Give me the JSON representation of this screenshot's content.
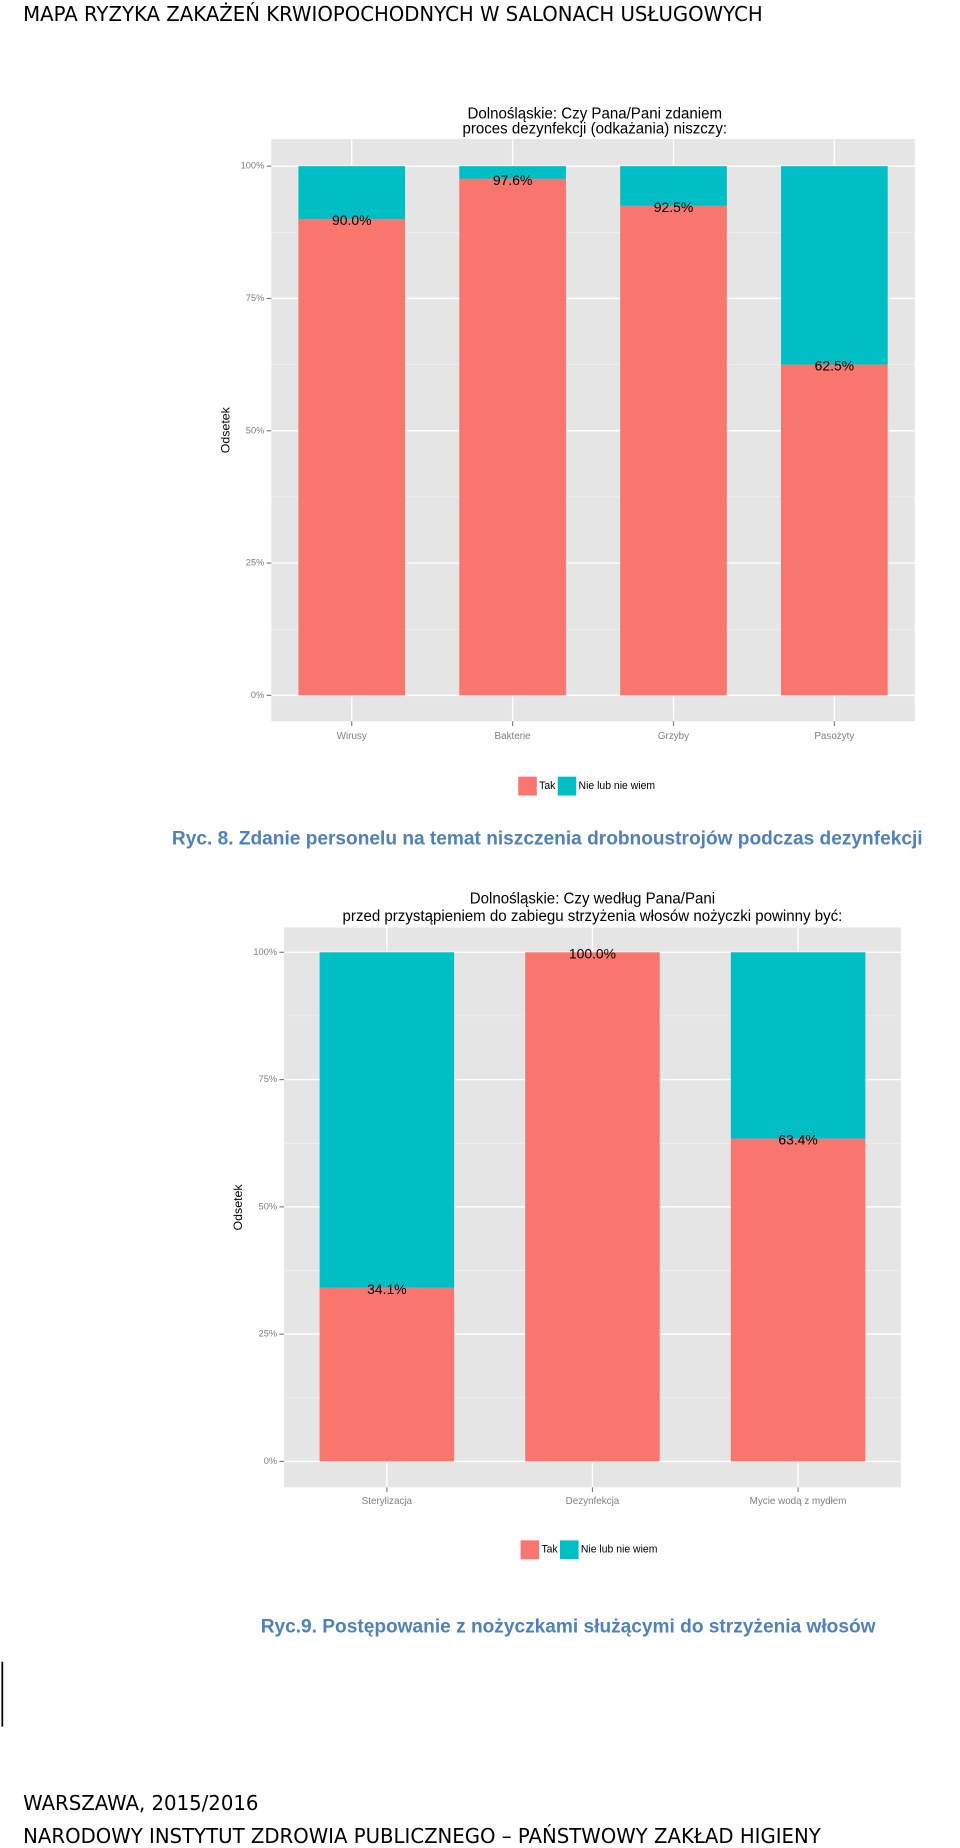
{
  "header": "MAPA RYZYKA ZAKAŻEŃ KRWIOPOCHODNYCH W SALONACH USŁUGOWYCH",
  "chart_data": [
    {
      "type": "bar",
      "stacked": true,
      "title": [
        "Dolnośląskie: Czy Pana/Pani zdaniem",
        "proces dezynfekcji (odkażania) niszczy:"
      ],
      "y_label": "Odsetek",
      "categories": [
        "Wirusy",
        "Bakterie",
        "Grzyby",
        "Pasożyty"
      ],
      "series": [
        {
          "name": "Tak",
          "color": "#f8766d",
          "values": [
            90.0,
            97.6,
            92.5,
            62.5
          ],
          "value_labels": [
            "90.0%",
            "97.6%",
            "92.5%",
            "62.5%"
          ]
        },
        {
          "name": "Nie lub nie wiem",
          "color": "#00bfc4",
          "values": [
            10.0,
            2.4,
            7.5,
            37.5
          ]
        }
      ],
      "ylim": [
        0,
        100
      ],
      "yticks": [
        {
          "value": 0,
          "label": "0%"
        },
        {
          "value": 25,
          "label": "25%"
        },
        {
          "value": 50,
          "label": "50%"
        },
        {
          "value": 75,
          "label": "75%"
        },
        {
          "value": 100,
          "label": "100%"
        }
      ],
      "grid": true,
      "legend": "bottom"
    },
    {
      "type": "bar",
      "stacked": true,
      "title": [
        "Dolnośląskie: Czy według Pana/Pani",
        "przed przystąpieniem do zabiegu strzyżenia włosów nożyczki powinny być:"
      ],
      "y_label": "Odsetek",
      "categories": [
        "Sterylizacja",
        "Dezynfekcja",
        "Mycie wodą z mydłem"
      ],
      "series": [
        {
          "name": "Tak",
          "color": "#f8766d",
          "values": [
            34.1,
            100.0,
            63.4
          ],
          "value_labels": [
            "34.1%",
            "100.0%",
            "63.4%"
          ]
        },
        {
          "name": "Nie lub nie wiem",
          "color": "#00bfc4",
          "values": [
            65.9,
            0,
            36.6
          ]
        }
      ],
      "ylim": [
        0,
        100
      ],
      "yticks": [
        {
          "value": 0,
          "label": "0%"
        },
        {
          "value": 25,
          "label": "25%"
        },
        {
          "value": 50,
          "label": "50%"
        },
        {
          "value": 75,
          "label": "75%"
        },
        {
          "value": 100,
          "label": "100%"
        }
      ],
      "grid": true,
      "legend": "bottom"
    }
  ],
  "captions": [
    "Ryc. 8. Zdanie personelu na temat niszczenia drobnoustrojów podczas dezynfekcji",
    "Ryc.9. Postępowanie z nożyczkami służącymi do strzyżenia włosów"
  ],
  "footer": [
    "WARSZAWA, 2015/2016",
    "NARODOWY INSTYTUT ZDROWIA PUBLICZNEGO – PAŃSTWOWY ZAKŁAD HIGIENY"
  ]
}
